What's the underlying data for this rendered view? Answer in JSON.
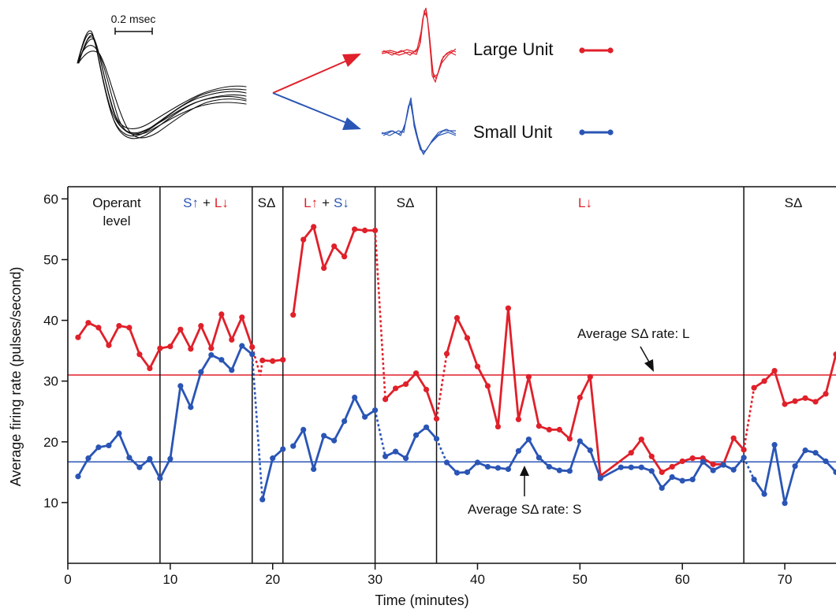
{
  "colors": {
    "large": "#e0202a",
    "small": "#2a55b5",
    "axis": "#111111"
  },
  "waveform": {
    "scale_label": "0.2 msec"
  },
  "legend": {
    "large": {
      "label": "Large Unit",
      "color": "#e0202a"
    },
    "small": {
      "label": "Small Unit",
      "color": "#2a55b5"
    }
  },
  "phases": {
    "operant_1": "Operant",
    "operant_2": "level",
    "p2_s": "S↑",
    "p2_plus": "+",
    "p2_l": "L↓",
    "p3": "SΔ",
    "p4_l": "L↑",
    "p4_plus": "+",
    "p4_s": "S↓",
    "p5": "SΔ",
    "p6": "L↓",
    "p7": "SΔ"
  },
  "annotations": {
    "avg_l": "Average SΔ rate: L",
    "avg_s": "Average SΔ rate: S"
  },
  "chart_data": {
    "type": "line",
    "xlabel": "Time (minutes)",
    "ylabel": "Average firing rate (pulses/second)",
    "xlim": [
      0,
      75
    ],
    "ylim": [
      0,
      62
    ],
    "xticks": [
      0,
      10,
      20,
      30,
      40,
      50,
      60,
      70
    ],
    "yticks": [
      10,
      20,
      30,
      40,
      50,
      60
    ],
    "phase_boundaries": [
      9,
      18,
      21,
      30,
      36,
      66
    ],
    "reference_lines": [
      {
        "label": "Average SΔ rate: L",
        "y": 31,
        "series": "Large Unit"
      },
      {
        "label": "Average SΔ rate: S",
        "y": 16.7,
        "series": "Small Unit"
      }
    ],
    "series": [
      {
        "name": "Large Unit",
        "segments": [
          [
            [
              1,
              37.2
            ],
            [
              2,
              39.6
            ],
            [
              3,
              38.8
            ],
            [
              4,
              35.9
            ],
            [
              5,
              39.1
            ],
            [
              6,
              38.8
            ],
            [
              7,
              34.4
            ],
            [
              8,
              32.1
            ],
            [
              9,
              35.4
            ],
            [
              10,
              35.7
            ],
            [
              11,
              38.5
            ],
            [
              12,
              35.3
            ],
            [
              13,
              39.1
            ],
            [
              14,
              35.4
            ],
            [
              15,
              41.0
            ],
            [
              16,
              36.8
            ],
            [
              17,
              40.5
            ],
            [
              18,
              35.6
            ]
          ],
          [
            [
              19,
              33.4
            ],
            [
              20,
              33.3
            ],
            [
              21,
              33.5
            ]
          ],
          [
            [
              22,
              40.9
            ],
            [
              23,
              53.3
            ],
            [
              24,
              55.4
            ],
            [
              25,
              48.6
            ],
            [
              26,
              52.2
            ],
            [
              27,
              50.5
            ],
            [
              28,
              55.0
            ],
            [
              29,
              54.8
            ],
            [
              30,
              54.8
            ]
          ],
          [
            [
              31,
              27.0
            ],
            [
              32,
              28.8
            ],
            [
              33,
              29.5
            ],
            [
              34,
              31.3
            ],
            [
              35,
              28.6
            ],
            [
              36,
              23.8
            ]
          ],
          [
            [
              37,
              34.5
            ],
            [
              38,
              40.4
            ],
            [
              39,
              37.1
            ],
            [
              40,
              32.4
            ],
            [
              41,
              29.2
            ],
            [
              42,
              22.5
            ],
            [
              43,
              42.0
            ],
            [
              44,
              23.7
            ],
            [
              45,
              30.7
            ],
            [
              46,
              22.6
            ],
            [
              47,
              22.0
            ],
            [
              48,
              22.0
            ],
            [
              49,
              20.5
            ],
            [
              50,
              27.3
            ],
            [
              51,
              30.7
            ],
            [
              52,
              14.4
            ],
            [
              55,
              18.2
            ],
            [
              56,
              20.4
            ],
            [
              57,
              17.6
            ],
            [
              58,
              15.0
            ],
            [
              59,
              15.9
            ],
            [
              60,
              16.8
            ],
            [
              61,
              17.3
            ],
            [
              62,
              17.3
            ],
            [
              63,
              16.3
            ],
            [
              64,
              16.3
            ],
            [
              65,
              20.6
            ],
            [
              66,
              18.7
            ]
          ],
          [
            [
              67,
              28.9
            ],
            [
              68,
              30.0
            ],
            [
              69,
              31.7
            ],
            [
              70,
              26.2
            ],
            [
              71,
              26.7
            ],
            [
              72,
              27.2
            ],
            [
              73,
              26.6
            ],
            [
              74,
              27.9
            ],
            [
              75,
              34.4
            ]
          ]
        ],
        "dashed_connectors": [
          [
            [
              18,
              35.6
            ],
            [
              18.8,
              30.9
            ],
            [
              19,
              33.4
            ]
          ],
          [
            [
              30,
              54.8
            ],
            [
              31,
              27.0
            ]
          ],
          [
            [
              36,
              23.8
            ],
            [
              37,
              34.5
            ]
          ],
          [
            [
              66,
              18.7
            ],
            [
              67,
              28.9
            ]
          ]
        ]
      },
      {
        "name": "Small Unit",
        "segments": [
          [
            [
              1,
              14.3
            ],
            [
              2,
              17.3
            ],
            [
              3,
              19.1
            ],
            [
              4,
              19.4
            ],
            [
              5,
              21.4
            ],
            [
              6,
              17.4
            ],
            [
              7,
              15.8
            ],
            [
              8,
              17.2
            ],
            [
              9,
              14.0
            ],
            [
              10,
              17.2
            ],
            [
              11,
              29.2
            ],
            [
              12,
              25.7
            ],
            [
              13,
              31.5
            ],
            [
              14,
              34.3
            ],
            [
              15,
              33.5
            ],
            [
              16,
              31.8
            ],
            [
              17,
              35.8
            ],
            [
              18,
              34.4
            ]
          ],
          [
            [
              19,
              10.5
            ],
            [
              20,
              17.3
            ],
            [
              21,
              18.8
            ]
          ],
          [
            [
              22,
              19.3
            ],
            [
              23,
              22.0
            ],
            [
              24,
              15.5
            ],
            [
              25,
              21.0
            ],
            [
              26,
              20.2
            ],
            [
              27,
              23.4
            ],
            [
              28,
              27.3
            ],
            [
              29,
              24.1
            ],
            [
              30,
              25.2
            ]
          ],
          [
            [
              31,
              17.6
            ],
            [
              32,
              18.4
            ],
            [
              33,
              17.3
            ],
            [
              34,
              21.1
            ],
            [
              35,
              22.4
            ],
            [
              36,
              20.5
            ]
          ],
          [
            [
              37,
              16.6
            ],
            [
              38,
              14.9
            ],
            [
              39,
              15.0
            ],
            [
              40,
              16.6
            ],
            [
              41,
              15.9
            ],
            [
              42,
              15.7
            ],
            [
              43,
              15.5
            ],
            [
              44,
              18.5
            ],
            [
              45,
              20.4
            ],
            [
              46,
              17.4
            ],
            [
              47,
              15.9
            ],
            [
              48,
              15.3
            ],
            [
              49,
              15.2
            ],
            [
              50,
              20.1
            ],
            [
              51,
              18.6
            ],
            [
              52,
              14.0
            ],
            [
              54,
              15.8
            ],
            [
              55,
              15.8
            ],
            [
              56,
              15.8
            ],
            [
              57,
              15.2
            ],
            [
              58,
              12.4
            ],
            [
              59,
              14.2
            ],
            [
              60,
              13.6
            ],
            [
              61,
              13.8
            ],
            [
              62,
              16.7
            ],
            [
              63,
              15.3
            ],
            [
              64,
              16.2
            ],
            [
              65,
              15.4
            ],
            [
              66,
              17.4
            ]
          ],
          [
            [
              67,
              13.8
            ],
            [
              68,
              11.4
            ],
            [
              69,
              19.5
            ],
            [
              70,
              9.9
            ],
            [
              71,
              16.0
            ],
            [
              72,
              18.6
            ],
            [
              73,
              18.2
            ],
            [
              74,
              16.8
            ],
            [
              75,
              15.0
            ]
          ]
        ],
        "dashed_connectors": [
          [
            [
              18,
              34.4
            ],
            [
              19,
              10.5
            ]
          ],
          [
            [
              30,
              25.2
            ],
            [
              31,
              17.6
            ]
          ],
          [
            [
              36,
              20.5
            ],
            [
              37,
              16.6
            ]
          ],
          [
            [
              66,
              17.4
            ],
            [
              67,
              13.8
            ]
          ]
        ]
      }
    ]
  }
}
